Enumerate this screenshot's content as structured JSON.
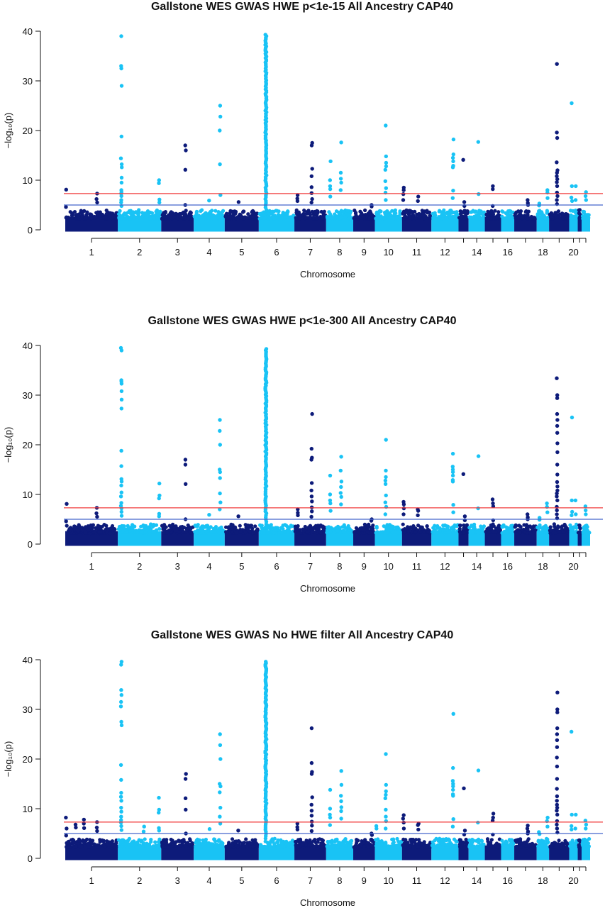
{
  "chart_data": [
    {
      "type": "scatter",
      "title": "Gallstone WES GWAS HWE p<1e-15 All Ancestry CAP40",
      "xlabel": "Chromosome",
      "ylabel": "−log₁₀(p)",
      "ylim": [
        0,
        40
      ],
      "yticks": [
        0,
        10,
        20,
        30,
        40
      ],
      "x_tick_labels": [
        "1",
        "2",
        "3",
        "4",
        "5",
        "6",
        "7",
        "8",
        "9",
        "10",
        "11",
        "12",
        "14",
        "16",
        "18",
        "20"
      ],
      "chromosomes": [
        1,
        2,
        3,
        4,
        5,
        6,
        7,
        8,
        9,
        10,
        11,
        12,
        13,
        14,
        15,
        16,
        17,
        18,
        19,
        20,
        21,
        22
      ],
      "colors": [
        "#0d1b7a",
        "#19c3f5"
      ],
      "threshold_lines": [
        {
          "value": 7.3,
          "color": "#f03c3c"
        },
        {
          "value": 5,
          "color": "#4466cc"
        }
      ],
      "background_max": 3.8,
      "peaks": [
        {
          "chr": 1,
          "pos": 0.02,
          "values": [
            8.1,
            4.6
          ]
        },
        {
          "chr": 1,
          "pos": 0.6,
          "values": [
            7.3,
            6.2,
            5.5
          ]
        },
        {
          "chr": 2,
          "pos": 0.08,
          "values": [
            39.0,
            33.0,
            32.5,
            29.0,
            18.8,
            14.4,
            13.2,
            12.6,
            10.5,
            9.5,
            8.0,
            7.6,
            7.3,
            6.8,
            6.0,
            5.5,
            4.8
          ]
        },
        {
          "chr": 2,
          "pos": 0.95,
          "values": [
            10.0,
            9.4,
            6.1,
            5.5
          ]
        },
        {
          "chr": 3,
          "pos": 0.75,
          "values": [
            17.0,
            16.0,
            12.1,
            5.0
          ]
        },
        {
          "chr": 4,
          "pos": 0.5,
          "values": [
            5.9
          ]
        },
        {
          "chr": 4,
          "pos": 0.85,
          "values": [
            25.0,
            22.8,
            20.0,
            13.2,
            7.0
          ]
        },
        {
          "chr": 5,
          "pos": 0.4,
          "values": [
            5.6
          ]
        },
        {
          "chr": 6,
          "pos": 0.2,
          "dense": true,
          "top": 39.3,
          "count": 110
        },
        {
          "chr": 7,
          "pos": 0.1,
          "values": [
            7.0,
            6.3,
            5.8
          ]
        },
        {
          "chr": 7,
          "pos": 0.55,
          "values": [
            17.5,
            17.0,
            12.3,
            10.8,
            8.6,
            7.4,
            6.2,
            5.5
          ]
        },
        {
          "chr": 8,
          "pos": 0.15,
          "values": [
            13.8,
            10.0,
            8.8,
            8.2,
            6.7
          ]
        },
        {
          "chr": 8,
          "pos": 0.55,
          "values": [
            17.6,
            11.5,
            10.3,
            9.5,
            8.0
          ]
        },
        {
          "chr": 9,
          "pos": 0.85,
          "values": [
            5.0,
            4.7
          ]
        },
        {
          "chr": 10,
          "pos": 0.4,
          "values": [
            21.0,
            14.8,
            13.5,
            12.8,
            12.1,
            9.8,
            8.4,
            7.5,
            6.0
          ]
        },
        {
          "chr": 11,
          "pos": 0.05,
          "values": [
            8.5,
            8.0,
            7.2,
            6.0
          ]
        },
        {
          "chr": 11,
          "pos": 0.55,
          "values": [
            6.7,
            5.8
          ]
        },
        {
          "chr": 12,
          "pos": 0.8,
          "values": [
            18.2,
            15.2,
            14.5,
            13.8,
            12.9,
            12.6,
            7.9,
            6.4
          ]
        },
        {
          "chr": 13,
          "pos": 0.5,
          "values": [
            14.1
          ]
        },
        {
          "chr": 13,
          "pos": 0.6,
          "values": [
            5.6,
            4.8
          ]
        },
        {
          "chr": 14,
          "pos": 0.6,
          "values": [
            17.7,
            7.2
          ]
        },
        {
          "chr": 15,
          "pos": 0.5,
          "values": [
            8.8,
            8.2,
            4.8
          ]
        },
        {
          "chr": 17,
          "pos": 0.6,
          "values": [
            6.0,
            5.4,
            5.0
          ]
        },
        {
          "chr": 18,
          "pos": 0.2,
          "values": [
            5.3,
            4.9
          ]
        },
        {
          "chr": 18,
          "pos": 0.85,
          "values": [
            8.0,
            7.5,
            6.4
          ]
        },
        {
          "chr": 19,
          "pos": 0.4,
          "values": [
            33.4,
            19.6,
            18.5,
            13.6,
            12.0,
            11.5,
            10.8,
            10.2,
            9.6,
            8.8,
            7.5,
            6.8,
            6.0,
            5.2
          ]
        },
        {
          "chr": 20,
          "pos": 0.3,
          "values": [
            25.5,
            8.8,
            6.5,
            5.8
          ]
        },
        {
          "chr": 20,
          "pos": 0.75,
          "values": [
            8.8,
            6.0
          ]
        },
        {
          "chr": 22,
          "pos": 0.5,
          "values": [
            7.6,
            6.8,
            6.0
          ]
        }
      ]
    },
    {
      "type": "scatter",
      "title": "Gallstone WES GWAS HWE p<1e-300 All Ancestry CAP40",
      "xlabel": "Chromosome",
      "ylabel": "−log₁₀(p)",
      "ylim": [
        0,
        40
      ],
      "yticks": [
        0,
        10,
        20,
        30,
        40
      ],
      "x_tick_labels": [
        "1",
        "2",
        "3",
        "4",
        "5",
        "6",
        "7",
        "8",
        "9",
        "10",
        "11",
        "12",
        "14",
        "16",
        "18",
        "20"
      ],
      "chromosomes": [
        1,
        2,
        3,
        4,
        5,
        6,
        7,
        8,
        9,
        10,
        11,
        12,
        13,
        14,
        15,
        16,
        17,
        18,
        19,
        20,
        21,
        22
      ],
      "colors": [
        "#0d1b7a",
        "#19c3f5"
      ],
      "threshold_lines": [
        {
          "value": 7.3,
          "color": "#f03c3c"
        },
        {
          "value": 5,
          "color": "#4466cc"
        }
      ],
      "background_max": 3.8,
      "peaks": [
        {
          "chr": 1,
          "pos": 0.02,
          "values": [
            8.1,
            4.6
          ]
        },
        {
          "chr": 1,
          "pos": 0.6,
          "values": [
            7.3,
            6.2,
            5.5
          ]
        },
        {
          "chr": 2,
          "pos": 0.08,
          "values": [
            39.5,
            39.0,
            33.0,
            32.7,
            32.3,
            30.8,
            29.1,
            27.3,
            18.8,
            15.7,
            13.1,
            12.6,
            11.8,
            10.4,
            9.6,
            8.3,
            7.7,
            7.2,
            6.5,
            5.7
          ]
        },
        {
          "chr": 2,
          "pos": 0.95,
          "values": [
            12.2,
            9.8,
            9.2,
            6.1,
            5.6
          ]
        },
        {
          "chr": 3,
          "pos": 0.75,
          "values": [
            17.0,
            16.0,
            12.1,
            5.0
          ]
        },
        {
          "chr": 4,
          "pos": 0.5,
          "values": [
            5.9
          ]
        },
        {
          "chr": 4,
          "pos": 0.85,
          "values": [
            25.0,
            22.8,
            20.0,
            15.0,
            14.5,
            13.3,
            10.2,
            8.4,
            7.0
          ]
        },
        {
          "chr": 5,
          "pos": 0.4,
          "values": [
            5.6
          ]
        },
        {
          "chr": 6,
          "pos": 0.2,
          "dense": true,
          "top": 39.3,
          "count": 110
        },
        {
          "chr": 7,
          "pos": 0.1,
          "values": [
            7.0,
            6.3,
            5.8
          ]
        },
        {
          "chr": 7,
          "pos": 0.55,
          "values": [
            26.2,
            19.2,
            17.4,
            17.0,
            12.3,
            10.8,
            9.6,
            8.6,
            7.4,
            6.6,
            5.5
          ]
        },
        {
          "chr": 8,
          "pos": 0.15,
          "values": [
            13.8,
            10.0,
            8.8,
            8.2,
            6.7
          ]
        },
        {
          "chr": 8,
          "pos": 0.55,
          "values": [
            17.6,
            14.8,
            12.6,
            11.5,
            10.3,
            9.5,
            8.0
          ]
        },
        {
          "chr": 9,
          "pos": 0.85,
          "values": [
            5.0,
            4.7
          ]
        },
        {
          "chr": 10,
          "pos": 0.4,
          "values": [
            21.0,
            14.8,
            13.5,
            12.8,
            12.1,
            9.8,
            8.4,
            7.5,
            6.0
          ]
        },
        {
          "chr": 11,
          "pos": 0.05,
          "values": [
            8.5,
            8.0,
            7.2,
            6.0
          ]
        },
        {
          "chr": 11,
          "pos": 0.55,
          "values": [
            7.0,
            6.7,
            5.8
          ]
        },
        {
          "chr": 12,
          "pos": 0.8,
          "values": [
            18.2,
            15.6,
            15.0,
            14.5,
            13.8,
            12.9,
            12.6,
            7.9,
            6.4
          ]
        },
        {
          "chr": 13,
          "pos": 0.5,
          "values": [
            14.1
          ]
        },
        {
          "chr": 13,
          "pos": 0.6,
          "values": [
            5.6,
            4.8
          ]
        },
        {
          "chr": 14,
          "pos": 0.6,
          "values": [
            17.7,
            7.2
          ]
        },
        {
          "chr": 15,
          "pos": 0.5,
          "values": [
            9.0,
            8.2,
            7.6,
            4.8
          ]
        },
        {
          "chr": 17,
          "pos": 0.6,
          "values": [
            6.0,
            5.4,
            5.0
          ]
        },
        {
          "chr": 18,
          "pos": 0.2,
          "values": [
            5.3,
            4.9
          ]
        },
        {
          "chr": 18,
          "pos": 0.85,
          "values": [
            8.2,
            7.5,
            6.4
          ]
        },
        {
          "chr": 19,
          "pos": 0.4,
          "values": [
            33.4,
            30.0,
            29.4,
            26.2,
            25.0,
            23.8,
            22.4,
            20.3,
            18.5,
            16.0,
            14.0,
            12.5,
            11.6,
            10.8,
            10.2,
            9.6,
            8.8,
            7.5,
            6.8,
            6.0,
            5.2
          ]
        },
        {
          "chr": 20,
          "pos": 0.3,
          "values": [
            25.5,
            8.8,
            6.5,
            5.8
          ]
        },
        {
          "chr": 20,
          "pos": 0.75,
          "values": [
            8.8,
            6.0
          ]
        },
        {
          "chr": 22,
          "pos": 0.5,
          "values": [
            7.6,
            6.8,
            6.0
          ]
        }
      ]
    },
    {
      "type": "scatter",
      "title": "Gallstone WES GWAS No HWE filter All Ancestry CAP40",
      "xlabel": "Chromosome",
      "ylabel": "−log₁₀(p)",
      "ylim": [
        0,
        40
      ],
      "yticks": [
        0,
        10,
        20,
        30,
        40
      ],
      "x_tick_labels": [
        "1",
        "2",
        "3",
        "4",
        "5",
        "6",
        "7",
        "8",
        "9",
        "10",
        "11",
        "12",
        "14",
        "16",
        "18",
        "20"
      ],
      "chromosomes": [
        1,
        2,
        3,
        4,
        5,
        6,
        7,
        8,
        9,
        10,
        11,
        12,
        13,
        14,
        15,
        16,
        17,
        18,
        19,
        20,
        21,
        22
      ],
      "colors": [
        "#0d1b7a",
        "#19c3f5"
      ],
      "threshold_lines": [
        {
          "value": 7.3,
          "color": "#f03c3c"
        },
        {
          "value": 5,
          "color": "#4466cc"
        }
      ],
      "background_max": 3.8,
      "peaks": [
        {
          "chr": 1,
          "pos": 0.02,
          "values": [
            8.2,
            6.0,
            4.6
          ]
        },
        {
          "chr": 1,
          "pos": 0.2,
          "values": [
            6.8,
            6.2
          ]
        },
        {
          "chr": 1,
          "pos": 0.35,
          "values": [
            7.8,
            7.0,
            6.1
          ]
        },
        {
          "chr": 1,
          "pos": 0.6,
          "values": [
            7.3,
            6.2,
            5.5
          ]
        },
        {
          "chr": 2,
          "pos": 0.08,
          "values": [
            39.6,
            39.0,
            33.9,
            32.9,
            31.5,
            30.6,
            27.5,
            26.8,
            18.8,
            15.8,
            13.2,
            12.4,
            11.6,
            10.2,
            9.4,
            8.4,
            7.7,
            7.2,
            6.5,
            5.7
          ]
        },
        {
          "chr": 2,
          "pos": 0.6,
          "values": [
            6.4,
            5.4
          ]
        },
        {
          "chr": 2,
          "pos": 0.95,
          "values": [
            12.2,
            9.8,
            9.2,
            6.1,
            5.6
          ]
        },
        {
          "chr": 3,
          "pos": 0.75,
          "values": [
            17.0,
            16.0,
            12.1,
            9.8,
            5.0
          ]
        },
        {
          "chr": 4,
          "pos": 0.5,
          "values": [
            5.9
          ]
        },
        {
          "chr": 4,
          "pos": 0.85,
          "values": [
            25.0,
            22.8,
            20.0,
            15.0,
            14.5,
            13.3,
            10.2,
            8.4,
            7.0
          ]
        },
        {
          "chr": 5,
          "pos": 0.4,
          "values": [
            5.6
          ]
        },
        {
          "chr": 6,
          "pos": 0.2,
          "dense": true,
          "top": 39.6,
          "count": 115
        },
        {
          "chr": 7,
          "pos": 0.1,
          "values": [
            7.0,
            6.3,
            5.8
          ]
        },
        {
          "chr": 7,
          "pos": 0.55,
          "values": [
            26.2,
            19.2,
            17.4,
            17.0,
            12.3,
            10.8,
            9.6,
            8.6,
            7.4,
            6.6,
            5.5
          ]
        },
        {
          "chr": 8,
          "pos": 0.15,
          "values": [
            13.8,
            10.0,
            8.8,
            8.2,
            6.7
          ]
        },
        {
          "chr": 8,
          "pos": 0.55,
          "values": [
            17.6,
            14.8,
            12.6,
            11.5,
            10.3,
            9.5,
            8.0
          ]
        },
        {
          "chr": 9,
          "pos": 0.85,
          "values": [
            5.0,
            4.7
          ]
        },
        {
          "chr": 10,
          "pos": 0.05,
          "values": [
            6.5,
            6.0
          ]
        },
        {
          "chr": 10,
          "pos": 0.4,
          "values": [
            21.0,
            14.8,
            13.5,
            12.8,
            12.1,
            9.8,
            8.4,
            7.5,
            6.0
          ]
        },
        {
          "chr": 11,
          "pos": 0.05,
          "values": [
            8.7,
            8.0,
            7.2,
            6.0
          ]
        },
        {
          "chr": 11,
          "pos": 0.55,
          "values": [
            7.0,
            6.7,
            5.8
          ]
        },
        {
          "chr": 12,
          "pos": 0.8,
          "values": [
            29.1,
            18.2,
            15.6,
            15.0,
            14.5,
            13.8,
            12.9,
            12.6,
            7.9,
            6.4
          ]
        },
        {
          "chr": 13,
          "pos": 0.5,
          "values": [
            14.1
          ]
        },
        {
          "chr": 13,
          "pos": 0.6,
          "values": [
            5.6,
            4.8
          ]
        },
        {
          "chr": 14,
          "pos": 0.6,
          "values": [
            17.7,
            7.2
          ]
        },
        {
          "chr": 15,
          "pos": 0.5,
          "values": [
            9.0,
            8.2,
            7.6,
            4.8
          ]
        },
        {
          "chr": 17,
          "pos": 0.6,
          "values": [
            6.6,
            6.0,
            5.4,
            5.0
          ]
        },
        {
          "chr": 18,
          "pos": 0.2,
          "values": [
            5.3,
            4.9
          ]
        },
        {
          "chr": 18,
          "pos": 0.85,
          "values": [
            8.2,
            7.5,
            6.4
          ]
        },
        {
          "chr": 19,
          "pos": 0.4,
          "values": [
            33.4,
            30.0,
            29.4,
            26.2,
            25.0,
            23.8,
            22.4,
            20.3,
            18.5,
            16.0,
            14.0,
            12.5,
            11.6,
            10.8,
            10.2,
            9.6,
            8.8,
            7.5,
            6.8,
            6.0,
            5.2
          ]
        },
        {
          "chr": 20,
          "pos": 0.3,
          "values": [
            25.5,
            8.8,
            6.5,
            5.8
          ]
        },
        {
          "chr": 20,
          "pos": 0.75,
          "values": [
            8.8,
            6.0
          ]
        },
        {
          "chr": 22,
          "pos": 0.5,
          "values": [
            7.6,
            6.8,
            6.0
          ]
        }
      ]
    }
  ]
}
